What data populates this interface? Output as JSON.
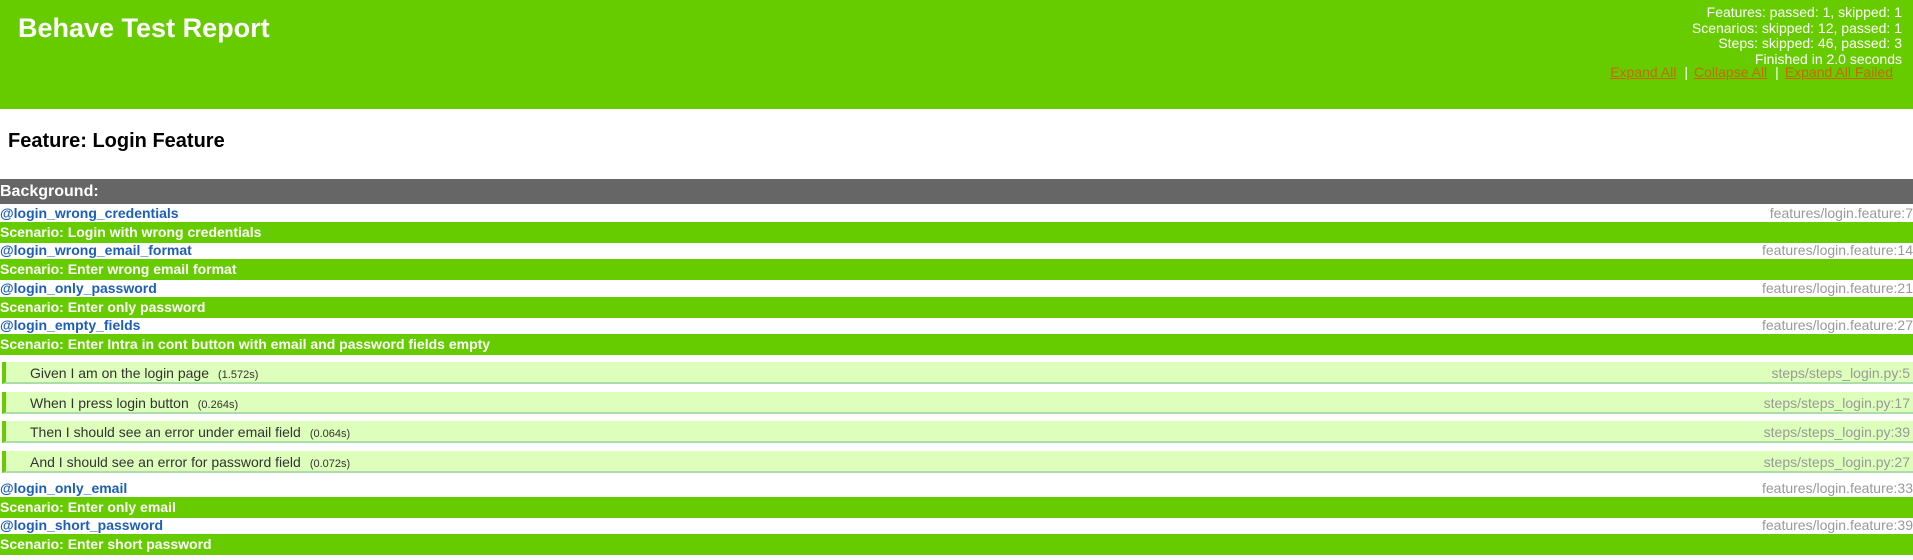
{
  "report": {
    "title": "Behave Test Report",
    "summary": {
      "features": "Features: passed: 1, skipped: 1",
      "scenarios": "Scenarios: skipped: 12, passed: 1",
      "steps": "Steps: skipped: 46, passed: 3",
      "duration": "Finished in 2.0 seconds"
    },
    "links": {
      "expand_all": "Expand All",
      "collapse_all": "Collapse All",
      "expand_failed": "Expand All Failed",
      "separator": "|"
    }
  },
  "feature": {
    "title": "Feature: Login Feature",
    "background_label": "Background:"
  },
  "scenarios": [
    {
      "tag": "@login_wrong_credentials",
      "location": "features/login.feature:7",
      "title": "Scenario: Login with wrong credentials"
    },
    {
      "tag": "@login_wrong_email_format",
      "location": "features/login.feature:14",
      "title": "Scenario: Enter wrong email format"
    },
    {
      "tag": "@login_only_password",
      "location": "features/login.feature:21",
      "title": "Scenario: Enter only password"
    },
    {
      "tag": "@login_empty_fields",
      "location": "features/login.feature:27",
      "title": "Scenario: Enter Intra in cont button with email and password fields empty"
    },
    {
      "tag": "@login_only_email",
      "location": "features/login.feature:33",
      "title": "Scenario: Enter only email"
    },
    {
      "tag": "@login_short_password",
      "location": "features/login.feature:39",
      "title": "Scenario: Enter short password"
    }
  ],
  "steps": [
    {
      "text": "Given I am on the login page",
      "duration": "(1.572s)",
      "location": "steps/steps_login.py:5"
    },
    {
      "text": "When I press login button",
      "duration": "(0.264s)",
      "location": "steps/steps_login.py:17"
    },
    {
      "text": "Then I should see an error under email field",
      "duration": "(0.064s)",
      "location": "steps/steps_login.py:39"
    },
    {
      "text": "And I should see an error for password field",
      "duration": "(0.072s)",
      "location": "steps/steps_login.py:27"
    }
  ],
  "colors": {
    "header_bg": "#66cc00",
    "passed_step_bg": "#ddffbb",
    "background_bar": "#666666",
    "tag_link": "#1d5fb8",
    "header_link": "#cc6600"
  }
}
